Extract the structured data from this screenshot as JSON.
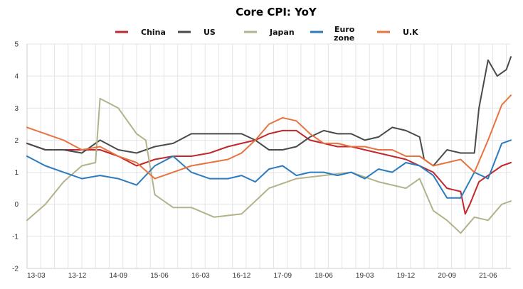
{
  "chart_data": {
    "type": "line",
    "title": "Core CPI: YoY",
    "xlabel": "",
    "ylabel": "",
    "ylim": [
      -2,
      5
    ],
    "yticks": [
      "5",
      "4",
      "3",
      "2",
      "1",
      "0",
      "-1",
      "-2"
    ],
    "grid": true,
    "legend_position": "top",
    "x_tick_labels": [
      "13-03",
      "13-12",
      "14-09",
      "15-06",
      "16-03",
      "16-12",
      "17-09",
      "18-06",
      "19-03",
      "19-12",
      "20-09",
      "21-06"
    ],
    "x_start": "2013-01",
    "x_end": "2021-11",
    "series": [
      {
        "name": "China",
        "color": "#c0282d",
        "x": [
          "2013-01",
          "2013-05",
          "2013-09",
          "2014-01",
          "2014-05",
          "2014-09",
          "2015-01",
          "2015-05",
          "2015-09",
          "2016-01",
          "2016-05",
          "2016-09",
          "2016-12",
          "2017-03",
          "2017-06",
          "2017-09",
          "2017-12",
          "2018-03",
          "2018-06",
          "2018-09",
          "2018-12",
          "2019-03",
          "2019-06",
          "2019-09",
          "2019-12",
          "2020-03",
          "2020-06",
          "2020-09",
          "2020-12",
          "2021-01",
          "2021-02",
          "2021-04",
          "2021-06",
          "2021-09",
          "2021-11"
        ],
        "values": [
          1.9,
          1.7,
          1.7,
          1.7,
          1.7,
          1.5,
          1.2,
          1.4,
          1.5,
          1.5,
          1.6,
          1.8,
          1.9,
          2.0,
          2.2,
          2.3,
          2.3,
          2.0,
          1.9,
          1.8,
          1.8,
          1.7,
          1.6,
          1.5,
          1.4,
          1.2,
          1.0,
          0.5,
          0.4,
          -0.3,
          0.0,
          0.7,
          0.9,
          1.2,
          1.3
        ]
      },
      {
        "name": "US",
        "color": "#4a4a4a",
        "x": [
          "2013-01",
          "2013-05",
          "2013-09",
          "2014-01",
          "2014-05",
          "2014-09",
          "2015-01",
          "2015-05",
          "2015-09",
          "2016-01",
          "2016-05",
          "2016-09",
          "2016-12",
          "2017-03",
          "2017-06",
          "2017-09",
          "2017-12",
          "2018-03",
          "2018-06",
          "2018-09",
          "2018-12",
          "2019-03",
          "2019-06",
          "2019-09",
          "2019-12",
          "2020-03",
          "2020-04",
          "2020-06",
          "2020-09",
          "2020-12",
          "2021-03",
          "2021-04",
          "2021-06",
          "2021-08",
          "2021-10",
          "2021-11"
        ],
        "values": [
          1.9,
          1.7,
          1.7,
          1.6,
          2.0,
          1.7,
          1.6,
          1.8,
          1.9,
          2.2,
          2.2,
          2.2,
          2.2,
          2.0,
          1.7,
          1.7,
          1.8,
          2.1,
          2.3,
          2.2,
          2.2,
          2.0,
          2.1,
          2.4,
          2.3,
          2.1,
          1.4,
          1.2,
          1.7,
          1.6,
          1.6,
          3.0,
          4.5,
          4.0,
          4.2,
          4.6
        ]
      },
      {
        "name": "Japan",
        "color": "#b3b28a",
        "x": [
          "2013-01",
          "2013-05",
          "2013-09",
          "2014-01",
          "2014-04",
          "2014-05",
          "2014-09",
          "2015-01",
          "2015-03",
          "2015-05",
          "2015-09",
          "2016-01",
          "2016-06",
          "2016-12",
          "2017-06",
          "2017-12",
          "2018-06",
          "2018-12",
          "2019-06",
          "2019-12",
          "2020-03",
          "2020-06",
          "2020-09",
          "2020-12",
          "2021-03",
          "2021-06",
          "2021-09",
          "2021-11"
        ],
        "values": [
          -0.5,
          0.0,
          0.7,
          1.2,
          1.3,
          3.3,
          3.0,
          2.2,
          2.0,
          0.3,
          -0.1,
          -0.1,
          -0.4,
          -0.3,
          0.5,
          0.8,
          0.9,
          1.0,
          0.7,
          0.5,
          0.8,
          -0.2,
          -0.5,
          -0.9,
          -0.4,
          -0.5,
          0.0,
          0.1
        ]
      },
      {
        "name": "Euro\nzone",
        "color": "#2d7bbf",
        "x": [
          "2013-01",
          "2013-05",
          "2013-09",
          "2014-01",
          "2014-05",
          "2014-09",
          "2015-01",
          "2015-05",
          "2015-09",
          "2016-01",
          "2016-05",
          "2016-09",
          "2016-12",
          "2017-03",
          "2017-06",
          "2017-09",
          "2017-12",
          "2018-03",
          "2018-06",
          "2018-09",
          "2018-12",
          "2019-03",
          "2019-06",
          "2019-09",
          "2019-12",
          "2020-03",
          "2020-06",
          "2020-09",
          "2020-12",
          "2021-03",
          "2021-06",
          "2021-09",
          "2021-11"
        ],
        "values": [
          1.5,
          1.2,
          1.0,
          0.8,
          0.9,
          0.8,
          0.6,
          1.2,
          1.5,
          1.0,
          0.8,
          0.8,
          0.9,
          0.7,
          1.1,
          1.2,
          0.9,
          1.0,
          1.0,
          0.9,
          1.0,
          0.8,
          1.1,
          1.0,
          1.3,
          1.2,
          0.9,
          0.2,
          0.2,
          1.0,
          0.8,
          1.9,
          2.0
        ]
      },
      {
        "name": "U.K",
        "color": "#e8733f",
        "x": [
          "2013-01",
          "2013-05",
          "2013-09",
          "2014-01",
          "2014-05",
          "2014-09",
          "2015-01",
          "2015-05",
          "2015-09",
          "2016-01",
          "2016-05",
          "2016-09",
          "2016-12",
          "2017-03",
          "2017-06",
          "2017-09",
          "2017-12",
          "2018-03",
          "2018-06",
          "2018-09",
          "2018-12",
          "2019-03",
          "2019-06",
          "2019-09",
          "2019-12",
          "2020-03",
          "2020-06",
          "2020-09",
          "2020-12",
          "2021-03",
          "2021-06",
          "2021-09",
          "2021-11"
        ],
        "values": [
          2.4,
          2.2,
          2.0,
          1.7,
          1.8,
          1.5,
          1.3,
          0.8,
          1.0,
          1.2,
          1.3,
          1.4,
          1.6,
          2.0,
          2.5,
          2.7,
          2.6,
          2.2,
          1.9,
          1.9,
          1.8,
          1.8,
          1.7,
          1.7,
          1.5,
          1.5,
          1.2,
          1.3,
          1.4,
          1.0,
          2.0,
          3.1,
          3.4
        ]
      }
    ]
  }
}
